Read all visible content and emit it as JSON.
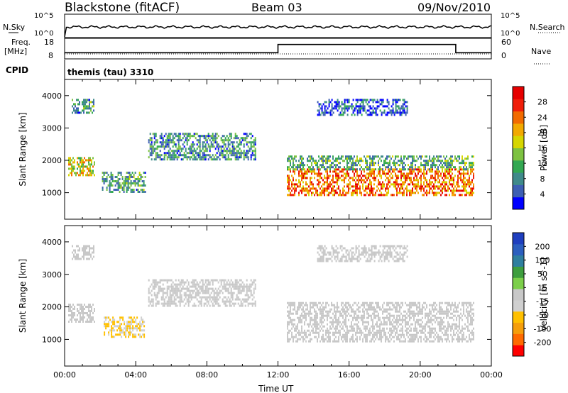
{
  "header": {
    "station": "Blackstone (fitACF)",
    "beam": "Beam 03",
    "date": "09/Nov/2010"
  },
  "panels": {
    "nsky_label": "N.Sky",
    "nsky_ticks": [
      "10^5",
      "10^0"
    ],
    "nsearch_label": "N.Search",
    "nsearch_ticks": [
      "10^5",
      "10^0"
    ],
    "freq_label_1": "Freq.",
    "freq_label_2": "[MHz]",
    "freq_ticks": [
      "18",
      "8"
    ],
    "nave_label": "Nave",
    "nave_ticks": [
      "60",
      "0"
    ],
    "cpid_label": "CPID",
    "cpid_text": "themis (tau) 3310"
  },
  "chart_data": [
    {
      "type": "heatmap",
      "name": "power",
      "ylabel": "Slant Range [km]",
      "ylim": [
        180,
        4500
      ],
      "yticks": [
        1000,
        2000,
        3000,
        4000
      ],
      "xlim": [
        0,
        24
      ],
      "colorbar_label": "Power [dB]",
      "colorbar_ticks": [
        "28",
        "24",
        "20",
        "16",
        "12",
        "8",
        "4"
      ],
      "colors": [
        "#0000ff",
        "#3d5fb3",
        "#3f8a8a",
        "#33a852",
        "#7dc241",
        "#d6d600",
        "#f2a900",
        "#f26b00",
        "#f01e0a",
        "#e60000"
      ],
      "regions": [
        {
          "t0": 0.2,
          "t1": 1.7,
          "r0": 1550,
          "r1": 2100,
          "value": 18
        },
        {
          "t0": 0.4,
          "t1": 1.6,
          "r0": 3450,
          "r1": 3900,
          "value": 10
        },
        {
          "t0": 2.1,
          "t1": 4.5,
          "r0": 1050,
          "r1": 1650,
          "value": 10
        },
        {
          "t0": 4.7,
          "t1": 10.7,
          "r0": 2000,
          "r1": 2850,
          "value": 9
        },
        {
          "t0": 12.5,
          "t1": 23.0,
          "r0": 950,
          "r1": 1750,
          "value": 24
        },
        {
          "t0": 12.5,
          "t1": 23.0,
          "r0": 1750,
          "r1": 2150,
          "value": 11
        },
        {
          "t0": 14.2,
          "t1": 19.3,
          "r0": 3400,
          "r1": 3900,
          "value": 5
        }
      ]
    },
    {
      "type": "heatmap",
      "name": "velocity",
      "ylabel": "Slant Range [km]",
      "ylim": [
        180,
        4500
      ],
      "yticks": [
        1000,
        2000,
        3000,
        4000
      ],
      "xlim": [
        0,
        24
      ],
      "xlabel": "Time UT",
      "xticks": [
        "00:00",
        "04:00",
        "08:00",
        "12:00",
        "16:00",
        "20:00",
        "00:00"
      ],
      "colorbar_label": "Velocity [m s^-1]",
      "colorbar_ticks": [
        "200",
        "100",
        "50",
        "15",
        "-15",
        "-50",
        "-100",
        "-200"
      ],
      "colors": [
        "#ff0000",
        "#ff6a00",
        "#f59e0b",
        "#ffc000",
        "#d0d0d0",
        "#c8c8c8",
        "#7ccf4a",
        "#3e9e3e",
        "#2f7f9f",
        "#2c5fbf",
        "#1f3fbf"
      ],
      "regions": [
        {
          "t0": 0.2,
          "t1": 1.7,
          "r0": 1550,
          "r1": 2100,
          "value": -5
        },
        {
          "t0": 0.4,
          "t1": 1.6,
          "r0": 3450,
          "r1": 3900,
          "value": 0
        },
        {
          "t0": 2.2,
          "t1": 4.5,
          "r0": 1050,
          "r1": 1700,
          "value": -70
        },
        {
          "t0": 4.7,
          "t1": 10.7,
          "r0": 2000,
          "r1": 2850,
          "value": -5
        },
        {
          "t0": 12.5,
          "t1": 23.0,
          "r0": 950,
          "r1": 2150,
          "value": -5
        },
        {
          "t0": 14.2,
          "t1": 19.3,
          "r0": 3400,
          "r1": 3900,
          "value": 0
        }
      ]
    }
  ],
  "series_freq": [
    {
      "t0": 0.0,
      "t1": 12.0,
      "value": 11
    },
    {
      "t0": 12.0,
      "t1": 22.0,
      "value": 15
    },
    {
      "t0": 22.0,
      "t1": 24.0,
      "value": 11
    }
  ]
}
